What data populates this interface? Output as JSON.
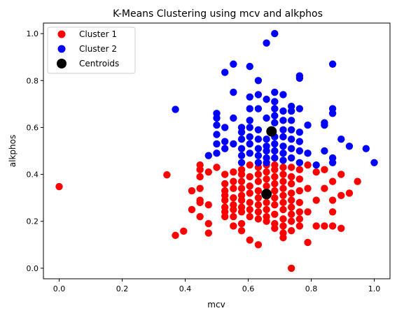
{
  "chart_data": {
    "type": "scatter",
    "title": "K-Means Clustering using mcv and alkphos",
    "xlabel": "mcv",
    "ylabel": "alkphos",
    "xlim": [
      -0.05,
      1.05
    ],
    "ylim": [
      -0.045,
      1.045
    ],
    "x_ticks": [
      0.0,
      0.2,
      0.4,
      0.6,
      0.8,
      1.0
    ],
    "x_tick_labels": [
      "0.0",
      "0.2",
      "0.4",
      "0.6",
      "0.8",
      "1.0"
    ],
    "y_ticks": [
      0.0,
      0.2,
      0.4,
      0.6,
      0.8,
      1.0
    ],
    "y_tick_labels": [
      "0.0",
      "0.2",
      "0.4",
      "0.6",
      "0.8",
      "1.0"
    ],
    "grid": false,
    "legend_position": "top-left",
    "series": [
      {
        "name": "Cluster 1",
        "color": "#ff0000",
        "points": [
          [
            0.0,
            0.348
          ],
          [
            0.342,
            0.398
          ],
          [
            0.369,
            0.14
          ],
          [
            0.395,
            0.158
          ],
          [
            0.421,
            0.33
          ],
          [
            0.421,
            0.25
          ],
          [
            0.447,
            0.44
          ],
          [
            0.447,
            0.42
          ],
          [
            0.447,
            0.39
          ],
          [
            0.447,
            0.34
          ],
          [
            0.447,
            0.29
          ],
          [
            0.447,
            0.28
          ],
          [
            0.447,
            0.22
          ],
          [
            0.474,
            0.19
          ],
          [
            0.474,
            0.15
          ],
          [
            0.474,
            0.27
          ],
          [
            0.474,
            0.41
          ],
          [
            0.5,
            0.43
          ],
          [
            0.526,
            0.4
          ],
          [
            0.526,
            0.36
          ],
          [
            0.526,
            0.33
          ],
          [
            0.526,
            0.31
          ],
          [
            0.526,
            0.29
          ],
          [
            0.526,
            0.26
          ],
          [
            0.526,
            0.24
          ],
          [
            0.526,
            0.22
          ],
          [
            0.553,
            0.41
          ],
          [
            0.553,
            0.37
          ],
          [
            0.553,
            0.34
          ],
          [
            0.553,
            0.3
          ],
          [
            0.553,
            0.27
          ],
          [
            0.553,
            0.25
          ],
          [
            0.553,
            0.22
          ],
          [
            0.553,
            0.18
          ],
          [
            0.579,
            0.42
          ],
          [
            0.579,
            0.4
          ],
          [
            0.579,
            0.37
          ],
          [
            0.579,
            0.34
          ],
          [
            0.579,
            0.31
          ],
          [
            0.579,
            0.29
          ],
          [
            0.579,
            0.26
          ],
          [
            0.579,
            0.24
          ],
          [
            0.579,
            0.19
          ],
          [
            0.579,
            0.16
          ],
          [
            0.605,
            0.44
          ],
          [
            0.605,
            0.39
          ],
          [
            0.605,
            0.35
          ],
          [
            0.605,
            0.32
          ],
          [
            0.605,
            0.28
          ],
          [
            0.605,
            0.25
          ],
          [
            0.605,
            0.22
          ],
          [
            0.605,
            0.12
          ],
          [
            0.632,
            0.43
          ],
          [
            0.632,
            0.4
          ],
          [
            0.632,
            0.37
          ],
          [
            0.632,
            0.33
          ],
          [
            0.632,
            0.3
          ],
          [
            0.632,
            0.27
          ],
          [
            0.632,
            0.24
          ],
          [
            0.632,
            0.21
          ],
          [
            0.632,
            0.1
          ],
          [
            0.658,
            0.44
          ],
          [
            0.658,
            0.41
          ],
          [
            0.658,
            0.38
          ],
          [
            0.658,
            0.35
          ],
          [
            0.658,
            0.31
          ],
          [
            0.658,
            0.28
          ],
          [
            0.658,
            0.25
          ],
          [
            0.658,
            0.22
          ],
          [
            0.658,
            0.2
          ],
          [
            0.684,
            0.44
          ],
          [
            0.684,
            0.42
          ],
          [
            0.684,
            0.39
          ],
          [
            0.684,
            0.36
          ],
          [
            0.684,
            0.33
          ],
          [
            0.684,
            0.3
          ],
          [
            0.684,
            0.27
          ],
          [
            0.684,
            0.23
          ],
          [
            0.684,
            0.19
          ],
          [
            0.684,
            0.17
          ],
          [
            0.711,
            0.43
          ],
          [
            0.711,
            0.4
          ],
          [
            0.711,
            0.37
          ],
          [
            0.711,
            0.34
          ],
          [
            0.711,
            0.31
          ],
          [
            0.711,
            0.28
          ],
          [
            0.711,
            0.25
          ],
          [
            0.711,
            0.21
          ],
          [
            0.711,
            0.18
          ],
          [
            0.711,
            0.15
          ],
          [
            0.711,
            0.13
          ],
          [
            0.737,
            0.43
          ],
          [
            0.737,
            0.39
          ],
          [
            0.737,
            0.36
          ],
          [
            0.737,
            0.32
          ],
          [
            0.737,
            0.29
          ],
          [
            0.737,
            0.26
          ],
          [
            0.737,
            0.23
          ],
          [
            0.737,
            0.2
          ],
          [
            0.737,
            0.16
          ],
          [
            0.737,
            0.0
          ],
          [
            0.763,
            0.42
          ],
          [
            0.763,
            0.38
          ],
          [
            0.763,
            0.33
          ],
          [
            0.763,
            0.28
          ],
          [
            0.763,
            0.24
          ],
          [
            0.763,
            0.21
          ],
          [
            0.763,
            0.18
          ],
          [
            0.789,
            0.44
          ],
          [
            0.789,
            0.34
          ],
          [
            0.789,
            0.24
          ],
          [
            0.789,
            0.11
          ],
          [
            0.816,
            0.41
          ],
          [
            0.816,
            0.29
          ],
          [
            0.816,
            0.18
          ],
          [
            0.842,
            0.42
          ],
          [
            0.842,
            0.34
          ],
          [
            0.842,
            0.18
          ],
          [
            0.868,
            0.37
          ],
          [
            0.868,
            0.29
          ],
          [
            0.868,
            0.24
          ],
          [
            0.868,
            0.18
          ],
          [
            0.895,
            0.4
          ],
          [
            0.895,
            0.31
          ],
          [
            0.895,
            0.17
          ],
          [
            0.921,
            0.32
          ],
          [
            0.947,
            0.37
          ]
        ]
      },
      {
        "name": "Cluster 2",
        "color": "#0000ff",
        "points": [
          [
            0.369,
            0.677
          ],
          [
            0.474,
            0.48
          ],
          [
            0.5,
            0.66
          ],
          [
            0.5,
            0.64
          ],
          [
            0.5,
            0.61
          ],
          [
            0.5,
            0.57
          ],
          [
            0.5,
            0.53
          ],
          [
            0.5,
            0.49
          ],
          [
            0.526,
            0.835
          ],
          [
            0.526,
            0.6
          ],
          [
            0.526,
            0.54
          ],
          [
            0.526,
            0.51
          ],
          [
            0.553,
            0.87
          ],
          [
            0.553,
            0.75
          ],
          [
            0.553,
            0.64
          ],
          [
            0.553,
            0.53
          ],
          [
            0.579,
            0.6
          ],
          [
            0.579,
            0.58
          ],
          [
            0.579,
            0.55
          ],
          [
            0.579,
            0.51
          ],
          [
            0.579,
            0.48
          ],
          [
            0.579,
            0.45
          ],
          [
            0.605,
            0.86
          ],
          [
            0.605,
            0.73
          ],
          [
            0.605,
            0.68
          ],
          [
            0.605,
            0.63
          ],
          [
            0.605,
            0.6
          ],
          [
            0.605,
            0.56
          ],
          [
            0.605,
            0.53
          ],
          [
            0.605,
            0.49
          ],
          [
            0.632,
            0.8
          ],
          [
            0.632,
            0.74
          ],
          [
            0.632,
            0.68
          ],
          [
            0.632,
            0.59
          ],
          [
            0.632,
            0.55
          ],
          [
            0.632,
            0.51
          ],
          [
            0.632,
            0.48
          ],
          [
            0.632,
            0.45
          ],
          [
            0.658,
            0.96
          ],
          [
            0.658,
            0.72
          ],
          [
            0.658,
            0.64
          ],
          [
            0.658,
            0.55
          ],
          [
            0.658,
            0.52
          ],
          [
            0.658,
            0.5
          ],
          [
            0.658,
            0.47
          ],
          [
            0.658,
            0.45
          ],
          [
            0.684,
            1.0
          ],
          [
            0.684,
            0.75
          ],
          [
            0.684,
            0.71
          ],
          [
            0.684,
            0.68
          ],
          [
            0.684,
            0.65
          ],
          [
            0.684,
            0.62
          ],
          [
            0.684,
            0.56
          ],
          [
            0.684,
            0.53
          ],
          [
            0.684,
            0.5
          ],
          [
            0.684,
            0.47
          ],
          [
            0.711,
            0.74
          ],
          [
            0.711,
            0.67
          ],
          [
            0.711,
            0.63
          ],
          [
            0.711,
            0.59
          ],
          [
            0.711,
            0.56
          ],
          [
            0.711,
            0.52
          ],
          [
            0.711,
            0.49
          ],
          [
            0.711,
            0.46
          ],
          [
            0.737,
            0.69
          ],
          [
            0.737,
            0.67
          ],
          [
            0.737,
            0.63
          ],
          [
            0.737,
            0.59
          ],
          [
            0.737,
            0.55
          ],
          [
            0.737,
            0.51
          ],
          [
            0.737,
            0.47
          ],
          [
            0.763,
            0.82
          ],
          [
            0.763,
            0.81
          ],
          [
            0.763,
            0.68
          ],
          [
            0.763,
            0.58
          ],
          [
            0.763,
            0.54
          ],
          [
            0.763,
            0.5
          ],
          [
            0.763,
            0.45
          ],
          [
            0.789,
            0.61
          ],
          [
            0.789,
            0.49
          ],
          [
            0.816,
            0.44
          ],
          [
            0.842,
            0.62
          ],
          [
            0.842,
            0.61
          ],
          [
            0.842,
            0.5
          ],
          [
            0.868,
            0.87
          ],
          [
            0.868,
            0.68
          ],
          [
            0.868,
            0.66
          ],
          [
            0.868,
            0.47
          ],
          [
            0.868,
            0.45
          ],
          [
            0.895,
            0.55
          ],
          [
            0.921,
            0.52
          ],
          [
            0.974,
            0.51
          ],
          [
            1.0,
            0.45
          ]
        ]
      },
      {
        "name": "Centroids",
        "color": "#000000",
        "points": [
          [
            0.674,
            0.583
          ],
          [
            0.658,
            0.316
          ]
        ]
      }
    ]
  }
}
